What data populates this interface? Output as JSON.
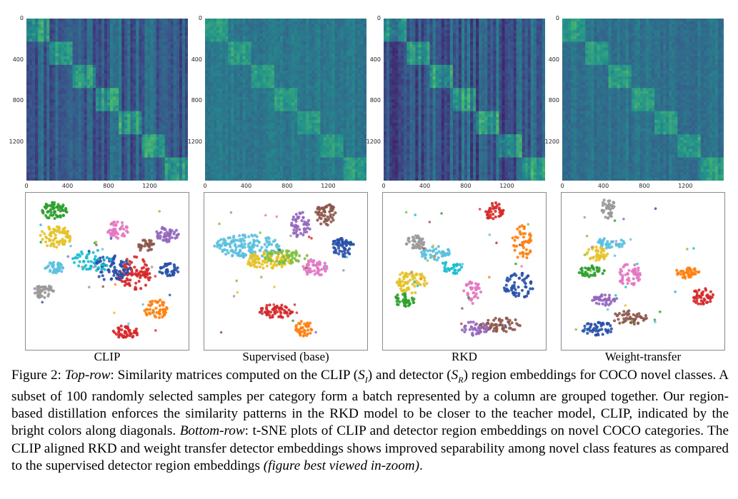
{
  "columns": [
    {
      "label": "CLIP",
      "matrix_style": "clip",
      "tsne_layout": "clip"
    },
    {
      "label": "Supervised (base)",
      "matrix_style": "supervised",
      "tsne_layout": "supervised"
    },
    {
      "label": "RKD",
      "matrix_style": "rkd",
      "tsne_layout": "rkd"
    },
    {
      "label": "Weight-transfer",
      "matrix_style": "weight",
      "tsne_layout": "weight"
    }
  ],
  "matrix_axis": {
    "y_ticks": [
      "0",
      "400",
      "800",
      "1200"
    ],
    "x_ticks": [
      "0",
      "400",
      "800",
      "1200"
    ]
  },
  "caption": {
    "figure_label": "Figure 2:",
    "top_row_label": "Top-row",
    "part1": ": Similarity matrices computed on the CLIP (",
    "s_i": "S",
    "s_i_sub": "I",
    "part2": ") and detector (",
    "s_r": "S",
    "s_r_sub": "R",
    "part3": ") region embeddings for COCO novel classes. A subset of 100 randomly selected samples per category form a batch represented by a column are grouped together. Our region-based distillation enforces the similarity patterns in the RKD model to be closer to the teacher model, CLIP, indicated by the bright colors along diagonals. ",
    "bottom_row_label": "Bottom-row",
    "part4": ": t-SNE plots of CLIP and detector region embeddings on novel COCO categories. The CLIP aligned RKD and weight transfer detector embeddings shows improved separability among novel class features as compared to the supervised detector region embeddings ",
    "note": "(figure best viewed in-zoom)",
    "end": "."
  },
  "colors": {
    "matrix_base": "#3b5c8c",
    "cluster_palette": [
      "#2ca02c",
      "#e6c229",
      "#5bc0de",
      "#999999",
      "#e377c2",
      "#8c564b",
      "#9467bd",
      "#2850a8",
      "#ff7f0e",
      "#d62728",
      "#17becf",
      "#7fbf3f"
    ]
  }
}
